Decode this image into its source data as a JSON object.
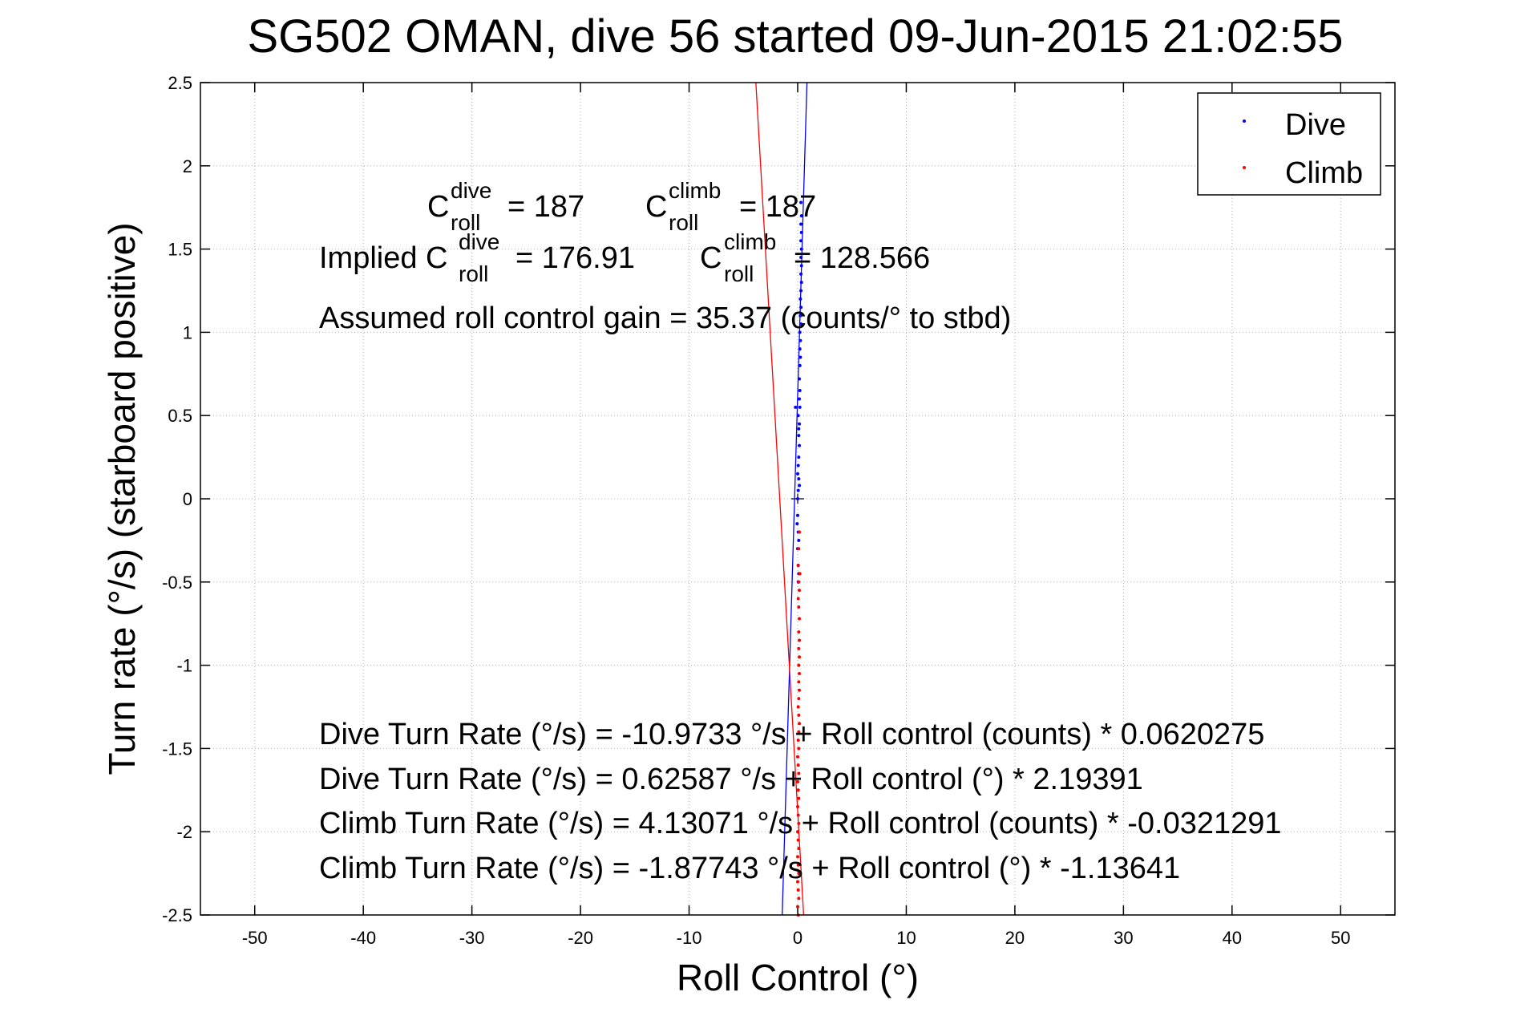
{
  "chart_data": {
    "type": "scatter",
    "title": "SG502 OMAN, dive 56 started 09-Jun-2015 21:02:55",
    "xlabel": "Roll Control (°)",
    "ylabel": "Turn rate (°/s) (starboard positive)",
    "xlim": [
      -55,
      55
    ],
    "ylim": [
      -2.5,
      2.5
    ],
    "xticks": [
      -50,
      -40,
      -30,
      -20,
      -10,
      0,
      10,
      20,
      30,
      40,
      50
    ],
    "yticks": [
      -2.5,
      -2,
      -1.5,
      -1,
      -0.5,
      0,
      0.5,
      1,
      1.5,
      2,
      2.5
    ],
    "grid": true,
    "legend_position": "top-right",
    "series": [
      {
        "name": "Dive",
        "color": "#0000ff",
        "points": [
          [
            0.0,
            0.0
          ],
          [
            0.05,
            0.05
          ],
          [
            0.1,
            0.12
          ],
          [
            0.05,
            0.2
          ],
          [
            0.1,
            0.25
          ],
          [
            0.15,
            0.32
          ],
          [
            0.1,
            0.38
          ],
          [
            0.15,
            0.45
          ],
          [
            0.05,
            0.5
          ],
          [
            -0.2,
            0.55
          ],
          [
            0.15,
            0.6
          ],
          [
            0.2,
            0.65
          ],
          [
            0.15,
            0.72
          ],
          [
            0.2,
            0.8
          ],
          [
            0.25,
            0.85
          ],
          [
            0.2,
            0.9
          ],
          [
            0.25,
            0.95
          ],
          [
            0.2,
            1.0
          ],
          [
            0.3,
            1.05
          ],
          [
            0.25,
            1.1
          ],
          [
            0.3,
            1.15
          ],
          [
            0.25,
            1.2
          ],
          [
            0.3,
            1.25
          ],
          [
            0.35,
            1.3
          ],
          [
            0.3,
            1.35
          ],
          [
            0.35,
            1.4
          ],
          [
            0.3,
            1.45
          ],
          [
            0.35,
            1.5
          ],
          [
            0.3,
            1.55
          ],
          [
            0.35,
            1.6
          ],
          [
            0.3,
            1.65
          ],
          [
            0.35,
            1.7
          ],
          [
            0.3,
            1.78
          ],
          [
            0.0,
            -0.1
          ],
          [
            0.05,
            -0.2
          ],
          [
            0.1,
            -0.25
          ],
          [
            0.0,
            -0.3
          ],
          [
            0.05,
            -0.4
          ],
          [
            0.1,
            -0.45
          ],
          [
            0.05,
            -0.5
          ],
          [
            -0.05,
            -0.15
          ],
          [
            0.0,
            0.15
          ],
          [
            0.1,
            0.42
          ],
          [
            0.2,
            0.55
          ],
          [
            0.15,
            0.08
          ]
        ]
      },
      {
        "name": "Climb",
        "color": "#ff0000",
        "points": [
          [
            0.1,
            -0.3
          ],
          [
            0.05,
            -0.4
          ],
          [
            0.1,
            -0.5
          ],
          [
            0.15,
            -0.55
          ],
          [
            0.05,
            -0.6
          ],
          [
            0.1,
            -0.65
          ],
          [
            0.15,
            -0.72
          ],
          [
            0.1,
            -0.8
          ],
          [
            0.15,
            -0.85
          ],
          [
            0.1,
            -0.9
          ],
          [
            0.15,
            -0.95
          ],
          [
            0.1,
            -1.0
          ],
          [
            0.15,
            -1.05
          ],
          [
            0.1,
            -1.1
          ],
          [
            0.15,
            -1.15
          ],
          [
            0.1,
            -1.2
          ],
          [
            0.05,
            -1.25
          ],
          [
            0.1,
            -1.3
          ],
          [
            0.15,
            -1.35
          ],
          [
            0.1,
            -1.4
          ],
          [
            0.05,
            -1.45
          ],
          [
            0.1,
            -1.5
          ],
          [
            0.0,
            -1.55
          ],
          [
            0.05,
            -1.6
          ],
          [
            0.1,
            -1.65
          ],
          [
            0.0,
            -1.7
          ],
          [
            0.05,
            -1.75
          ],
          [
            0.1,
            -1.8
          ],
          [
            0.0,
            -1.85
          ],
          [
            0.05,
            -1.9
          ],
          [
            0.1,
            -1.95
          ],
          [
            0.0,
            -2.0
          ],
          [
            0.05,
            -2.05
          ],
          [
            0.1,
            -2.1
          ],
          [
            0.0,
            -2.15
          ],
          [
            0.05,
            -2.2
          ],
          [
            0.1,
            -2.25
          ],
          [
            0.0,
            -2.3
          ],
          [
            0.05,
            -2.35
          ],
          [
            0.1,
            -2.4
          ],
          [
            0.0,
            -2.45
          ],
          [
            0.05,
            -2.5
          ],
          [
            0.2,
            -0.45
          ],
          [
            0.15,
            -0.2
          ]
        ]
      }
    ],
    "fit_lines": [
      {
        "series": "Dive",
        "color": "#0000ff",
        "intercept": 0.62587,
        "slope": 2.19391
      },
      {
        "series": "Climb",
        "color": "#ff0000",
        "intercept": -1.87743,
        "slope": -1.13641
      }
    ],
    "annotations": {
      "c_roll_dive_label": "C",
      "c_roll_dive_sup": "dive",
      "c_roll_dive_sub": "roll",
      "c_roll_dive_value": "= 187",
      "c_roll_climb_label": "C",
      "c_roll_climb_sup": "climb",
      "c_roll_climb_sub": "roll",
      "c_roll_climb_value": "= 187",
      "implied_prefix": "Implied C",
      "implied_dive_sup": "dive",
      "implied_dive_sub": "roll",
      "implied_dive_value": "= 176.91",
      "implied_climb_label": "C",
      "implied_climb_sup": "climb",
      "implied_climb_sub": "roll",
      "implied_climb_value": "= 128.566",
      "gain": "Assumed roll control gain = 35.37 (counts/° to stbd)",
      "eq1": "Dive Turn Rate (°/s) = -10.9733 °/s + Roll control (counts) * 0.0620275",
      "eq2": "Dive Turn Rate (°/s) = 0.62587 °/s + Roll control (°) * 2.19391",
      "eq3": "Climb Turn Rate (°/s) = 4.13071 °/s + Roll control (counts) * -0.0321291",
      "eq4": "Climb Turn Rate (°/s) = -1.87743 °/s + Roll control (°) * -1.13641"
    }
  }
}
